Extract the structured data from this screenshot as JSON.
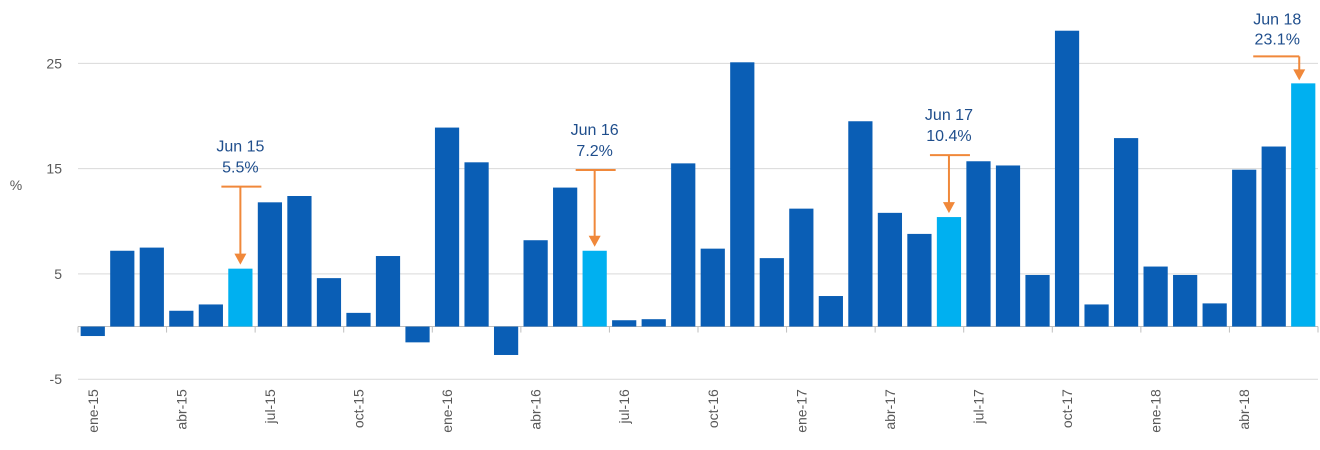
{
  "chart_data": {
    "type": "bar",
    "y_label": "%",
    "categories": [
      "ene-15",
      null,
      null,
      "abr-15",
      null,
      null,
      "jul-15",
      null,
      null,
      "oct-15",
      null,
      null,
      "ene-16",
      null,
      null,
      "abr-16",
      null,
      null,
      "jul-16",
      null,
      null,
      "oct-16",
      null,
      null,
      "ene-17",
      null,
      null,
      "abr-17",
      null,
      null,
      "jul-17",
      null,
      null,
      "oct-17",
      null,
      null,
      "ene-18",
      null,
      null,
      "abr-18",
      null,
      null
    ],
    "values": [
      -0.9,
      7.2,
      7.5,
      1.5,
      2.1,
      5.5,
      11.8,
      12.4,
      4.6,
      1.3,
      6.7,
      -1.5,
      18.9,
      15.6,
      -2.7,
      8.2,
      13.2,
      7.2,
      0.6,
      0.7,
      15.5,
      7.4,
      25.1,
      6.5,
      11.2,
      2.9,
      19.5,
      10.8,
      8.8,
      10.4,
      15.7,
      15.3,
      4.9,
      28.1,
      2.1,
      17.9,
      5.7,
      4.9,
      2.2,
      14.9,
      17.1,
      23.1
    ],
    "annotation_titles": [
      null,
      null,
      null,
      null,
      null,
      "Jun 15",
      null,
      null,
      null,
      null,
      null,
      null,
      null,
      null,
      null,
      null,
      null,
      "Jun 16",
      null,
      null,
      null,
      null,
      null,
      null,
      null,
      null,
      null,
      null,
      null,
      "Jun 17",
      null,
      null,
      null,
      null,
      null,
      null,
      null,
      null,
      null,
      null,
      null,
      "Jun 18"
    ],
    "value_labels": [
      null,
      null,
      null,
      null,
      null,
      "5.5%",
      null,
      null,
      null,
      null,
      null,
      null,
      null,
      null,
      null,
      null,
      null,
      "7.2%",
      null,
      null,
      null,
      null,
      null,
      null,
      null,
      null,
      null,
      null,
      null,
      "10.4%",
      null,
      null,
      null,
      null,
      null,
      null,
      null,
      null,
      null,
      null,
      null,
      "23.1%"
    ],
    "color": "#0a5eb5",
    "highlight_color": "#00b0f0",
    "arrow_color": "#f0883a",
    "ylim": [
      -5,
      28.5
    ],
    "yticks": [
      -5,
      5,
      15,
      25
    ],
    "grid": true
  }
}
